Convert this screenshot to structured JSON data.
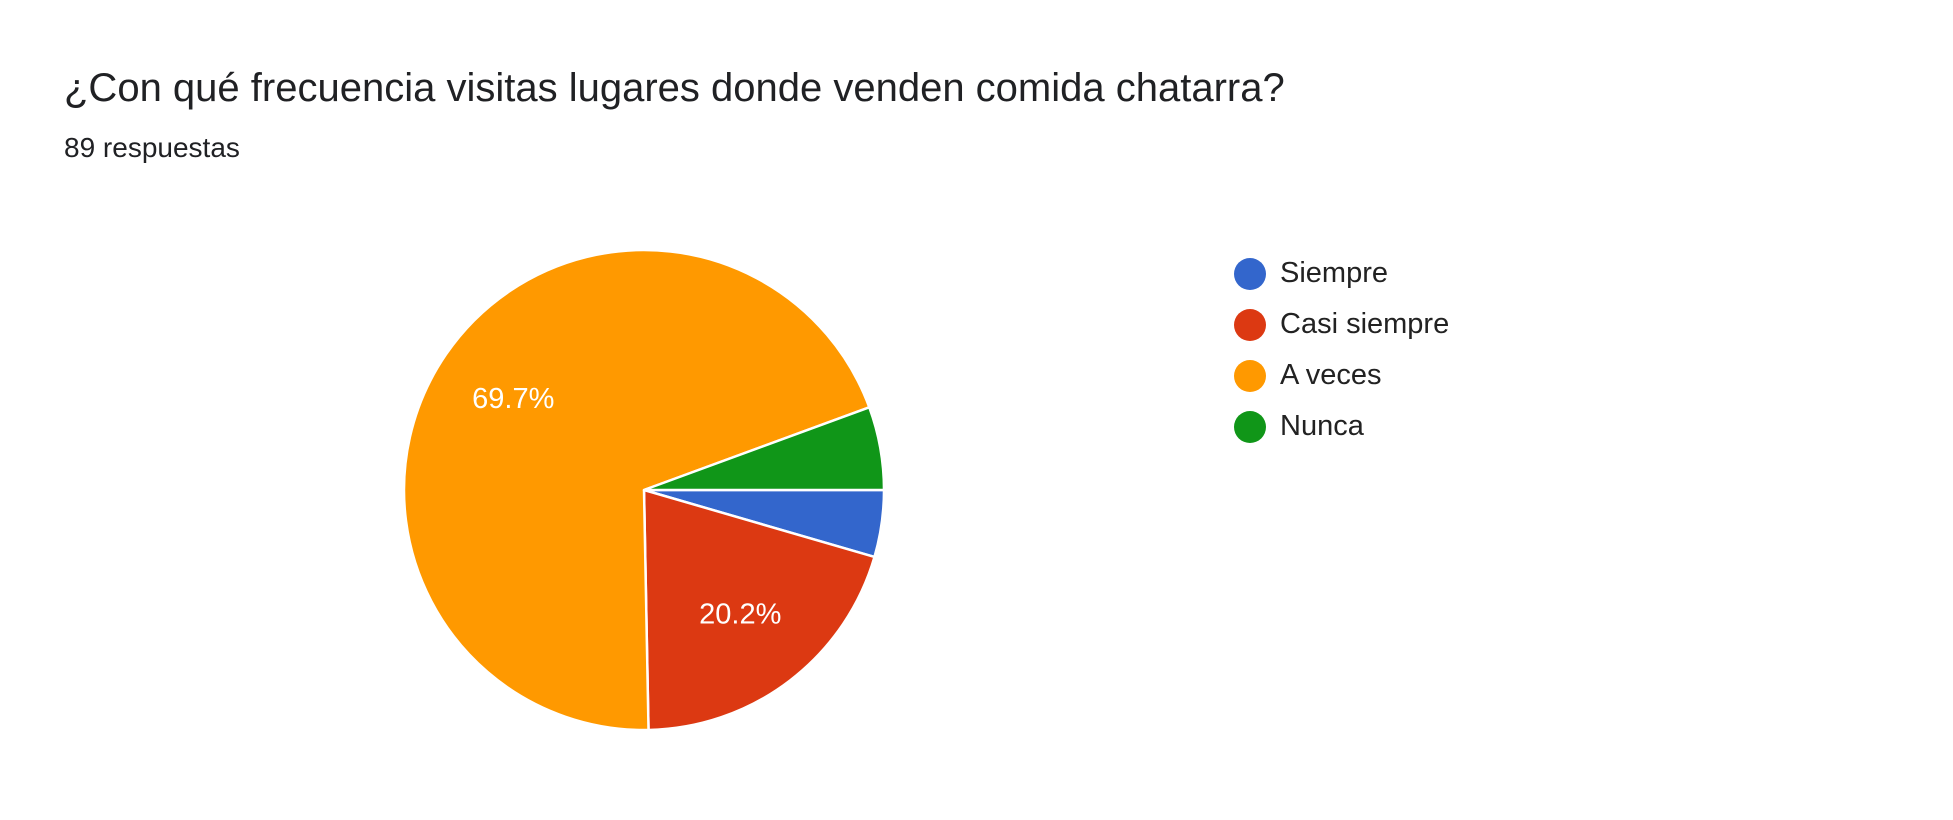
{
  "chart_data": {
    "type": "pie",
    "title": "¿Con qué frecuencia visitas lugares donde venden comida chatarra?",
    "subtitle": "89 respuestas",
    "legend_position": "right",
    "slices": [
      {
        "label": "Siempre",
        "value": 4.5,
        "color": "#3366cc",
        "data_label": ""
      },
      {
        "label": "Casi siempre",
        "value": 20.2,
        "color": "#dc3912",
        "data_label": "20.2%"
      },
      {
        "label": "A veces",
        "value": 69.7,
        "color": "#ff9900",
        "data_label": "69.7%"
      },
      {
        "label": "Nunca",
        "value": 5.6,
        "color": "#109618",
        "data_label": ""
      }
    ]
  }
}
